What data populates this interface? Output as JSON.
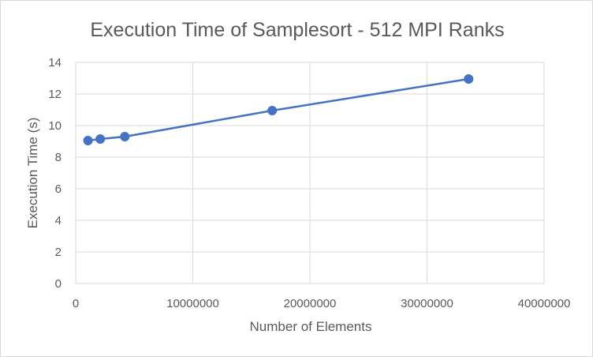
{
  "chart_data": {
    "type": "scatter",
    "title": "Execution Time of Samplesort  - 512 MPI Ranks",
    "xlabel": "Number of Elements",
    "ylabel": "Execution Time (s)",
    "xlim": [
      0,
      40000000
    ],
    "ylim": [
      0,
      14
    ],
    "x_ticks": [
      0,
      10000000,
      20000000,
      30000000,
      40000000
    ],
    "x_tick_labels": [
      "0",
      "10000000",
      "20000000",
      "30000000",
      "40000000"
    ],
    "y_ticks": [
      0,
      2,
      4,
      6,
      8,
      10,
      12,
      14
    ],
    "y_tick_labels": [
      "0",
      "2",
      "4",
      "6",
      "8",
      "10",
      "12",
      "14"
    ],
    "grid": true,
    "legend": "none",
    "series": [
      {
        "x": [
          1048576,
          2097152,
          4194304,
          16777216,
          33554432
        ],
        "y": [
          9.05,
          9.15,
          9.3,
          10.95,
          12.95
        ],
        "color": "#4472c4",
        "style": "line-with-markers"
      }
    ]
  }
}
